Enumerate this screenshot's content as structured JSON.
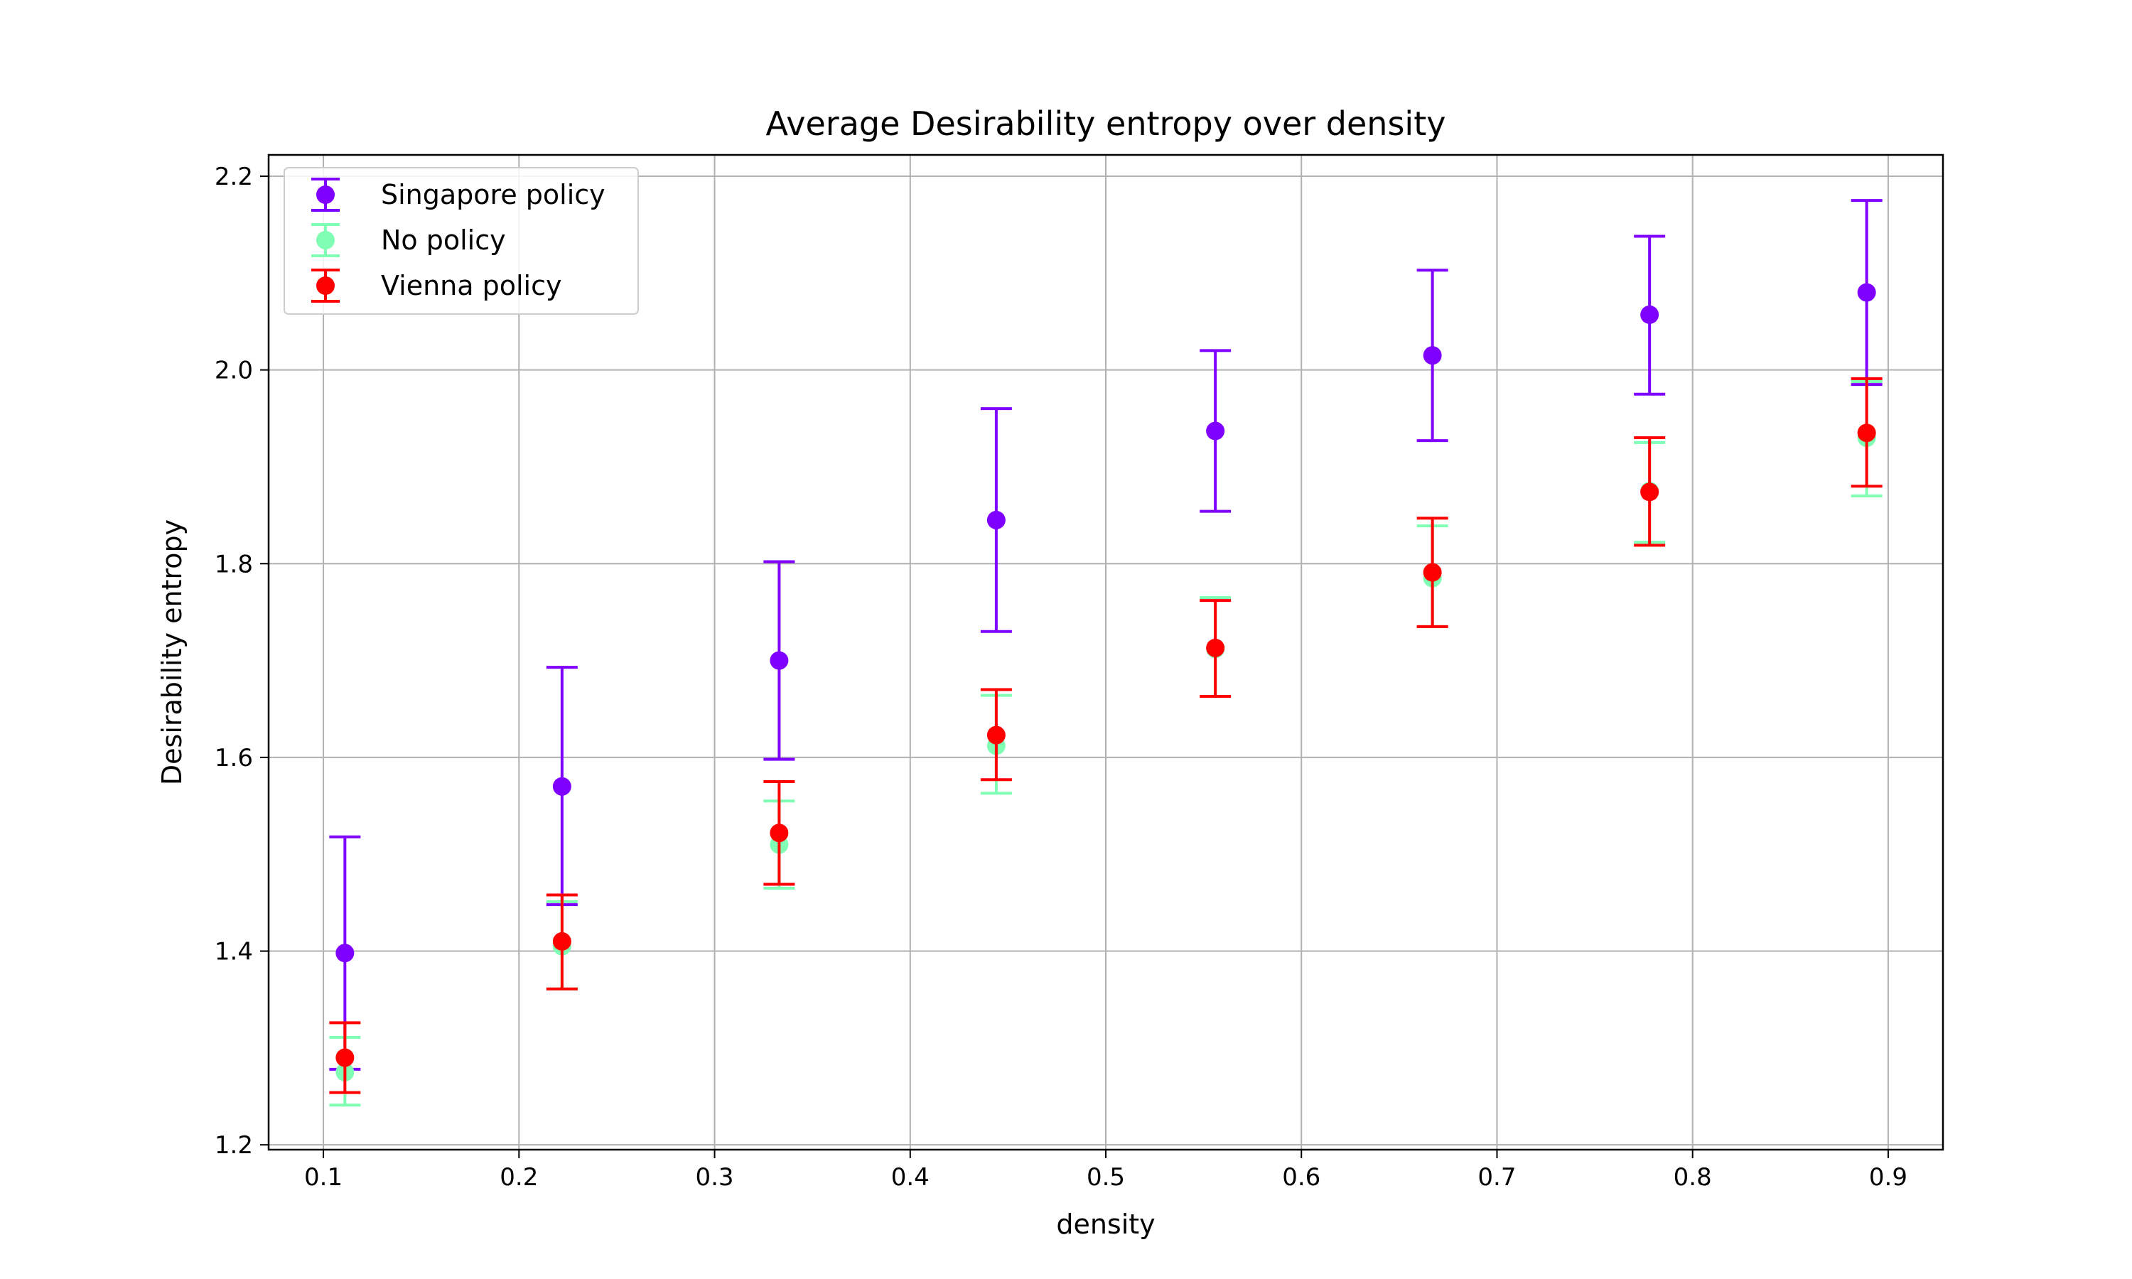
{
  "chart_data": {
    "type": "scatter",
    "title": "Average Desirability entropy over density",
    "xlabel": "density",
    "ylabel": "Desirability entropy",
    "xlim": [
      0.072,
      0.928
    ],
    "ylim": [
      1.195,
      2.222
    ],
    "xticks": [
      "0.1",
      "0.2",
      "0.3",
      "0.4",
      "0.5",
      "0.6",
      "0.7",
      "0.8",
      "0.9"
    ],
    "yticks": [
      "1.2",
      "1.4",
      "1.6",
      "1.8",
      "2.0",
      "2.2"
    ],
    "grid": true,
    "legend_position": "top-left",
    "x": [
      0.111,
      0.222,
      0.333,
      0.444,
      0.556,
      0.667,
      0.778,
      0.889
    ],
    "series": [
      {
        "name": "Singapore policy",
        "color": "#7f00ff",
        "values": [
          1.398,
          1.57,
          1.7,
          1.845,
          1.937,
          2.015,
          2.057,
          2.08
        ],
        "err_low": [
          1.278,
          1.448,
          1.598,
          1.73,
          1.854,
          1.927,
          1.975,
          1.985
        ],
        "err_high": [
          1.518,
          1.693,
          1.802,
          1.96,
          2.02,
          2.103,
          2.138,
          2.175
        ]
      },
      {
        "name": "No policy",
        "color": "#80ffb4",
        "values": [
          1.275,
          1.405,
          1.51,
          1.612,
          1.712,
          1.785,
          1.875,
          1.93
        ],
        "err_low": [
          1.241,
          1.361,
          1.465,
          1.563,
          1.663,
          1.735,
          1.822,
          1.87
        ],
        "err_high": [
          1.311,
          1.451,
          1.555,
          1.664,
          1.765,
          1.839,
          1.925,
          1.988
        ]
      },
      {
        "name": "Vienna policy",
        "color": "#ff0000",
        "values": [
          1.29,
          1.41,
          1.522,
          1.623,
          1.713,
          1.791,
          1.874,
          1.935
        ],
        "err_low": [
          1.254,
          1.361,
          1.469,
          1.577,
          1.663,
          1.735,
          1.819,
          1.88
        ],
        "err_high": [
          1.326,
          1.458,
          1.575,
          1.67,
          1.762,
          1.847,
          1.93,
          1.991
        ]
      }
    ]
  }
}
